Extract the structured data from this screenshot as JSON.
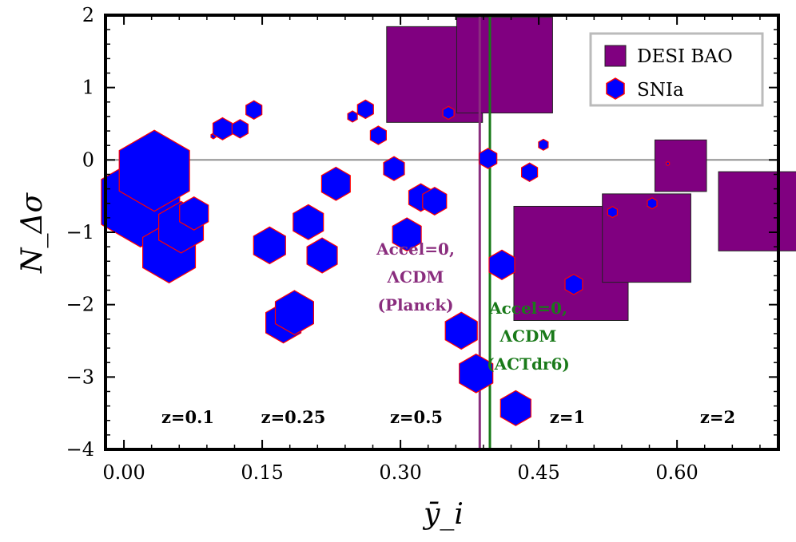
{
  "chart_data": {
    "type": "scatter",
    "title": "",
    "xlabel": "ȳ_i",
    "ylabel": "N_Δσ",
    "xlim": [
      -0.02,
      0.71
    ],
    "ylim": [
      -4,
      2
    ],
    "x_ticks": [
      0.0,
      0.15,
      0.3,
      0.45,
      0.6
    ],
    "x_tick_labels": [
      "0.00",
      "0.15",
      "0.30",
      "0.45",
      "0.60"
    ],
    "y_ticks": [
      2,
      1,
      0,
      -1,
      -2,
      -3,
      -4
    ],
    "y_tick_labels": [
      "2",
      "1",
      "0",
      "−1",
      "−2",
      "−3",
      "−4"
    ],
    "reference_line_y": 0,
    "vertical_lines": [
      {
        "name": "planck",
        "x": 0.386,
        "color": "#8a2d7e",
        "label_lines": [
          "Accel=0,",
          "ΛCDM",
          "(Planck)"
        ]
      },
      {
        "name": "actdr6",
        "x": 0.397,
        "color": "#1a7a1a",
        "label_lines": [
          "Accel=0,",
          "ΛCDM",
          "(ACTdr6)"
        ]
      }
    ],
    "redshift_labels": [
      "z=0.1",
      "z=0.25",
      "z=0.5",
      "z=1",
      "z=2"
    ],
    "legend": {
      "position": "top-right",
      "entries": [
        "DESI BAO",
        "SNIa"
      ]
    },
    "series": [
      {
        "name": "DESI BAO",
        "marker": "square",
        "color": "#800080",
        "points": [
          {
            "x": 0.337,
            "y": 1.18,
            "size": 0.052
          },
          {
            "x": 0.413,
            "y": 1.31,
            "size": 0.052
          },
          {
            "x": 0.485,
            "y": -1.43,
            "size": 0.062
          },
          {
            "x": 0.567,
            "y": -1.08,
            "size": 0.048
          },
          {
            "x": 0.604,
            "y": -0.08,
            "size": 0.028
          },
          {
            "x": 0.688,
            "y": -0.71,
            "size": 0.043
          }
        ]
      },
      {
        "name": "SNIa",
        "marker": "hexagon",
        "color": "#0000ff",
        "edgecolor": "#ff0000",
        "points": [
          {
            "x": 0.018,
            "y": -0.58,
            "size": 0.049
          },
          {
            "x": 0.033,
            "y": -0.15,
            "size": 0.044
          },
          {
            "x": 0.049,
            "y": -1.28,
            "size": 0.033
          },
          {
            "x": 0.062,
            "y": -0.93,
            "size": 0.028
          },
          {
            "x": 0.076,
            "y": -0.74,
            "size": 0.018
          },
          {
            "x": 0.097,
            "y": 0.33,
            "size": 0.003
          },
          {
            "x": 0.107,
            "y": 0.43,
            "size": 0.012
          },
          {
            "x": 0.126,
            "y": 0.43,
            "size": 0.01
          },
          {
            "x": 0.141,
            "y": 0.69,
            "size": 0.01
          },
          {
            "x": 0.158,
            "y": -1.18,
            "size": 0.02
          },
          {
            "x": 0.173,
            "y": -2.25,
            "size": 0.022
          },
          {
            "x": 0.185,
            "y": -2.11,
            "size": 0.024
          },
          {
            "x": 0.2,
            "y": -0.86,
            "size": 0.019
          },
          {
            "x": 0.215,
            "y": -1.32,
            "size": 0.019
          },
          {
            "x": 0.23,
            "y": -0.33,
            "size": 0.018
          },
          {
            "x": 0.248,
            "y": 0.6,
            "size": 0.006
          },
          {
            "x": 0.262,
            "y": 0.7,
            "size": 0.01
          },
          {
            "x": 0.276,
            "y": 0.34,
            "size": 0.01
          },
          {
            "x": 0.293,
            "y": -0.12,
            "size": 0.013
          },
          {
            "x": 0.307,
            "y": -1.03,
            "size": 0.018
          },
          {
            "x": 0.322,
            "y": -0.52,
            "size": 0.015
          },
          {
            "x": 0.337,
            "y": -0.57,
            "size": 0.015
          },
          {
            "x": 0.352,
            "y": 0.65,
            "size": 0.007
          },
          {
            "x": 0.366,
            "y": -2.36,
            "size": 0.02
          },
          {
            "x": 0.382,
            "y": -2.95,
            "size": 0.021
          },
          {
            "x": 0.395,
            "y": 0.02,
            "size": 0.011
          },
          {
            "x": 0.41,
            "y": -1.45,
            "size": 0.016
          },
          {
            "x": 0.425,
            "y": -3.43,
            "size": 0.019
          },
          {
            "x": 0.44,
            "y": -0.17,
            "size": 0.01
          },
          {
            "x": 0.455,
            "y": 0.21,
            "size": 0.006
          },
          {
            "x": 0.488,
            "y": -1.72,
            "size": 0.011
          },
          {
            "x": 0.53,
            "y": -0.72,
            "size": 0.006
          },
          {
            "x": 0.573,
            "y": -0.6,
            "size": 0.006
          },
          {
            "x": 0.59,
            "y": -0.05,
            "size": 0.002
          }
        ]
      }
    ]
  }
}
